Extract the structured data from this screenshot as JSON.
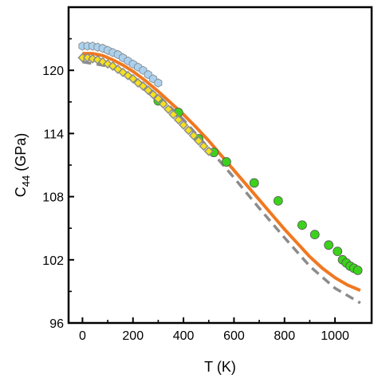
{
  "chart_data": {
    "type": "scatter",
    "xlabel": "T (K)",
    "ylabel": {
      "main": "C",
      "sub": "44",
      "unit": " (GPa)"
    },
    "xlim": [
      -55,
      1145
    ],
    "ylim": [
      96,
      126
    ],
    "xticks": [
      "0",
      "200",
      "400",
      "600",
      "800",
      "1000"
    ],
    "yticks": [
      "96",
      "102",
      "108",
      "114",
      "120"
    ],
    "xtick_values": [
      0,
      200,
      400,
      600,
      800,
      1000
    ],
    "ytick_values": [
      96,
      102,
      108,
      114,
      120
    ],
    "grid": false,
    "series": [
      {
        "style": "line",
        "color": "#f07820",
        "points": [
          [
            0,
            121.6
          ],
          [
            40,
            121.6
          ],
          [
            80,
            121.4
          ],
          [
            120,
            121.0
          ],
          [
            160,
            120.5
          ],
          [
            200,
            119.9
          ],
          [
            250,
            119.0
          ],
          [
            300,
            118.0
          ],
          [
            350,
            116.9
          ],
          [
            400,
            115.8
          ],
          [
            450,
            114.6
          ],
          [
            500,
            113.3
          ],
          [
            550,
            111.9
          ],
          [
            600,
            110.5
          ],
          [
            650,
            109.1
          ],
          [
            700,
            107.7
          ],
          [
            750,
            106.3
          ],
          [
            800,
            104.9
          ],
          [
            850,
            103.6
          ],
          [
            900,
            102.3
          ],
          [
            950,
            101.2
          ],
          [
            1000,
            100.3
          ],
          [
            1050,
            99.6
          ],
          [
            1100,
            99.1
          ]
        ]
      },
      {
        "style": "dashed",
        "color": "#8c8c8c",
        "points": [
          [
            0,
            120.8
          ],
          [
            100,
            120.4
          ],
          [
            200,
            119.4
          ],
          [
            300,
            117.6
          ],
          [
            400,
            115.3
          ],
          [
            500,
            112.6
          ],
          [
            600,
            109.8
          ],
          [
            700,
            106.9
          ],
          [
            800,
            104.1
          ],
          [
            900,
            101.4
          ],
          [
            1000,
            99.3
          ],
          [
            1100,
            97.9
          ]
        ]
      },
      {
        "style": "marker",
        "marker": "circle",
        "color": "#3cd21c",
        "points": [
          [
            300,
            117.1
          ],
          [
            380,
            116.0
          ],
          [
            460,
            113.5
          ],
          [
            520,
            112.2
          ],
          [
            570,
            111.3
          ],
          [
            680,
            109.3
          ],
          [
            775,
            107.6
          ],
          [
            870,
            105.3
          ],
          [
            920,
            104.4
          ],
          [
            975,
            103.4
          ],
          [
            1010,
            102.8
          ],
          [
            1030,
            102.0
          ],
          [
            1045,
            101.7
          ],
          [
            1060,
            101.4
          ],
          [
            1075,
            101.2
          ],
          [
            1090,
            101.0
          ]
        ]
      },
      {
        "style": "marker",
        "marker": "hexagon",
        "color": "#aad2f0",
        "points": [
          [
            0,
            122.3
          ],
          [
            20,
            122.3
          ],
          [
            40,
            122.3
          ],
          [
            60,
            122.2
          ],
          [
            80,
            122.1
          ],
          [
            100,
            121.9
          ],
          [
            120,
            121.7
          ],
          [
            140,
            121.5
          ],
          [
            160,
            121.2
          ],
          [
            180,
            120.9
          ],
          [
            200,
            120.6
          ],
          [
            220,
            120.3
          ],
          [
            240,
            120.0
          ],
          [
            260,
            119.6
          ],
          [
            280,
            119.2
          ],
          [
            300,
            118.8
          ]
        ]
      },
      {
        "style": "marker",
        "marker": "diamond",
        "color": "#f5e11e",
        "points": [
          [
            0,
            121.2
          ],
          [
            20,
            121.2
          ],
          [
            40,
            121.1
          ],
          [
            60,
            121.0
          ],
          [
            80,
            120.8
          ],
          [
            100,
            120.6
          ],
          [
            120,
            120.4
          ],
          [
            140,
            120.1
          ],
          [
            160,
            119.8
          ],
          [
            180,
            119.5
          ],
          [
            200,
            119.2
          ],
          [
            220,
            118.8
          ],
          [
            240,
            118.5
          ],
          [
            260,
            118.1
          ],
          [
            280,
            117.7
          ],
          [
            300,
            117.3
          ],
          [
            320,
            116.8
          ],
          [
            340,
            116.3
          ],
          [
            360,
            115.8
          ],
          [
            380,
            115.3
          ],
          [
            400,
            114.8
          ],
          [
            420,
            114.3
          ],
          [
            440,
            113.8
          ],
          [
            460,
            113.3
          ],
          [
            480,
            112.8
          ],
          [
            500,
            112.3
          ]
        ]
      }
    ]
  }
}
